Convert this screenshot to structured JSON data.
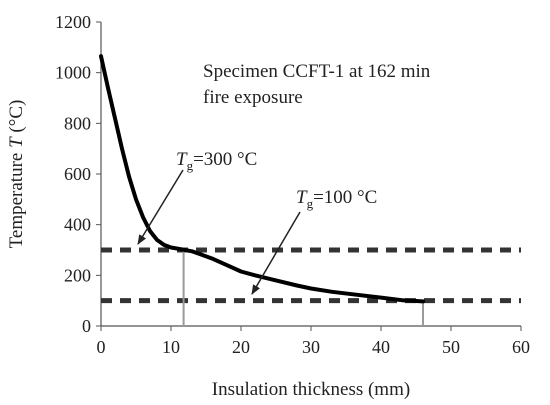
{
  "chart_data": {
    "type": "line",
    "xlabel": "Insulation thickness (mm)",
    "ylabel_prefix": "Temperature ",
    "ylabel_symbol": "T",
    "ylabel_suffix": " (°C)",
    "xlim": [
      0,
      60
    ],
    "ylim": [
      0,
      1200
    ],
    "x_ticks": [
      "0",
      "10",
      "20",
      "30",
      "40",
      "50",
      "60"
    ],
    "y_ticks": [
      "0",
      "200",
      "400",
      "600",
      "800",
      "1000",
      "1200"
    ],
    "grid": false,
    "series": [
      {
        "x": [
          0,
          1,
          2,
          3,
          4,
          5,
          6,
          7,
          8,
          9,
          10,
          11,
          12,
          13,
          14,
          16,
          18,
          20,
          22,
          25,
          28,
          30,
          33,
          36,
          40,
          43,
          46
        ],
        "values": [
          1065,
          940,
          820,
          700,
          590,
          500,
          430,
          375,
          340,
          320,
          310,
          305,
          300,
          295,
          285,
          265,
          240,
          215,
          200,
          180,
          160,
          148,
          135,
          125,
          112,
          102,
          97
        ]
      }
    ],
    "reference_lines": [
      {
        "y": 300,
        "style": "dashed"
      },
      {
        "y": 100,
        "style": "dashed"
      }
    ],
    "drop_lines": [
      {
        "x": 11.8,
        "y": 300
      },
      {
        "x": 46,
        "y": 100
      }
    ],
    "annotations": {
      "specimen_line1": "Specimen CCFT-1 at 162 min",
      "specimen_line2": "fire exposure",
      "tg300_symbol": "T",
      "tg300_sub": "g",
      "tg300_value": "=300 °C",
      "tg100_symbol": "T",
      "tg100_sub": "g",
      "tg100_value": "=100 °C"
    },
    "colors": {
      "curve": "#000000",
      "reference": "#333333",
      "drop": "#9a9a9a",
      "axis": "#555555"
    }
  }
}
